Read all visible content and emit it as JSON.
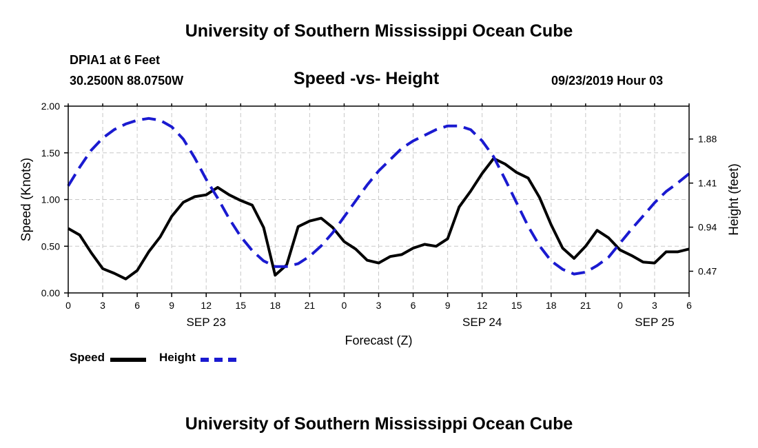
{
  "header": {
    "title": "University of Southern Mississippi Ocean Cube",
    "station": "DPIA1 at 6 Feet",
    "coords": "30.2500N 88.0750W",
    "chart_title": "Speed -vs- Height",
    "datetime": "09/23/2019 Hour 03"
  },
  "footer": {
    "title": "University of Southern Mississippi Ocean Cube"
  },
  "legend": {
    "speed_label": "Speed",
    "height_label": "Height"
  },
  "chart_data": {
    "type": "line",
    "title": "Speed -vs- Height",
    "xlabel": "Forecast (Z)",
    "ylabel_left": "Speed (Knots)",
    "ylabel_right": "Height (feet)",
    "x_range_hours": [
      0,
      54
    ],
    "x_ticks": [
      0,
      3,
      6,
      9,
      12,
      15,
      18,
      21,
      24,
      27,
      30,
      33,
      36,
      39,
      42,
      45,
      48,
      51,
      54
    ],
    "x_tick_labels": [
      "0",
      "3",
      "6",
      "9",
      "12",
      "15",
      "18",
      "21",
      "0",
      "3",
      "6",
      "9",
      "12",
      "15",
      "18",
      "21",
      "0",
      "3",
      "6"
    ],
    "date_labels": [
      {
        "hour": 12,
        "text": "SEP 23"
      },
      {
        "hour": 36,
        "text": "SEP 24"
      },
      {
        "hour": 51,
        "text": "SEP 25"
      }
    ],
    "ylim_left": [
      0,
      2.0
    ],
    "y_ticks_left": [
      0,
      0.5,
      1.0,
      1.5,
      2.0
    ],
    "y_tick_labels_left": [
      "0.00",
      "0.50",
      "1.00",
      "1.50",
      "2.00"
    ],
    "ylim_right": [
      0.2386,
      2.2306
    ],
    "y_ticks_right": [
      0.47,
      0.94,
      1.41,
      1.88
    ],
    "y_tick_labels_right": [
      "0.47",
      "0.94",
      "1.41",
      "1.88"
    ],
    "grid": true,
    "series": [
      {
        "name": "Speed",
        "axis": "left",
        "color": "#000000",
        "style": "solid",
        "x": [
          0,
          1,
          2,
          3,
          4,
          5,
          6,
          7,
          8,
          9,
          10,
          11,
          12,
          13,
          14,
          15,
          16,
          17,
          18,
          19,
          20,
          21,
          22,
          23,
          24,
          25,
          26,
          27,
          28,
          29,
          30,
          31,
          32,
          33,
          34,
          35,
          36,
          37,
          38,
          39,
          40,
          41,
          42,
          43,
          44,
          45,
          46,
          47,
          48,
          49,
          50,
          51,
          52,
          53,
          54
        ],
        "values": [
          0.69,
          0.62,
          0.43,
          0.26,
          0.21,
          0.15,
          0.24,
          0.44,
          0.6,
          0.82,
          0.97,
          1.03,
          1.05,
          1.13,
          1.05,
          0.99,
          0.94,
          0.7,
          0.19,
          0.3,
          0.71,
          0.77,
          0.8,
          0.7,
          0.55,
          0.47,
          0.35,
          0.32,
          0.39,
          0.41,
          0.48,
          0.52,
          0.5,
          0.58,
          0.92,
          1.09,
          1.28,
          1.44,
          1.38,
          1.29,
          1.23,
          1.02,
          0.73,
          0.48,
          0.37,
          0.5,
          0.67,
          0.59,
          0.46,
          0.4,
          0.33,
          0.32,
          0.44,
          0.44,
          0.47
        ]
      },
      {
        "name": "Height",
        "axis": "right",
        "color": "#1a1ad0",
        "style": "dashed",
        "x": [
          0,
          1,
          2,
          3,
          4,
          5,
          6,
          7,
          8,
          9,
          10,
          11,
          12,
          13,
          14,
          15,
          16,
          17,
          18,
          19,
          20,
          21,
          22,
          23,
          24,
          25,
          26,
          27,
          28,
          29,
          30,
          31,
          32,
          33,
          34,
          35,
          36,
          37,
          38,
          39,
          40,
          41,
          42,
          43,
          44,
          45,
          46,
          47,
          48,
          49,
          50,
          51,
          52,
          53,
          54
        ],
        "values": [
          1.38,
          1.58,
          1.76,
          1.89,
          1.98,
          2.04,
          2.08,
          2.1,
          2.08,
          2.01,
          1.88,
          1.68,
          1.45,
          1.25,
          1.03,
          0.84,
          0.69,
          0.58,
          0.52,
          0.52,
          0.55,
          0.63,
          0.74,
          0.88,
          1.05,
          1.22,
          1.39,
          1.54,
          1.66,
          1.78,
          1.86,
          1.92,
          1.98,
          2.02,
          2.02,
          1.98,
          1.86,
          1.69,
          1.45,
          1.2,
          0.95,
          0.74,
          0.58,
          0.49,
          0.44,
          0.46,
          0.53,
          0.62,
          0.77,
          0.92,
          1.06,
          1.2,
          1.32,
          1.41,
          1.51
        ]
      }
    ]
  }
}
